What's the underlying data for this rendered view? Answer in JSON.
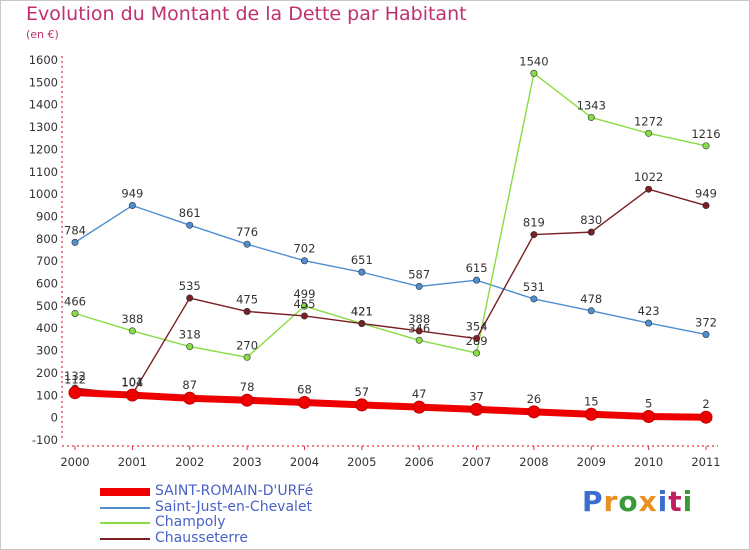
{
  "title": "Evolution du Montant de la Dette par Habitant",
  "subtitle": "(en €)",
  "logo": {
    "text": "Proxiti",
    "colors": [
      "#3a6fd0",
      "#e89020",
      "#3a9a3a",
      "#e89020",
      "#3a6fd0",
      "#c02060",
      "#3a9a3a"
    ]
  },
  "chart_data": {
    "type": "line",
    "x": [
      "2000",
      "2001",
      "2002",
      "2003",
      "2004",
      "2005",
      "2006",
      "2007",
      "2008",
      "2009",
      "2010",
      "2011"
    ],
    "ylim": [
      -100,
      1600
    ],
    "yticks": [
      "-100",
      "0",
      "100",
      "200",
      "300",
      "400",
      "500",
      "600",
      "700",
      "800",
      "900",
      "1000",
      "1100",
      "1200",
      "1300",
      "1400",
      "1500",
      "1600"
    ],
    "grid": false,
    "legend_position": "bottom-left",
    "series": [
      {
        "name": "SAINT-ROMAIN-D'URFé",
        "color": "#ee0000",
        "values": [
          112,
          101,
          87,
          78,
          68,
          57,
          47,
          37,
          26,
          15,
          5,
          2
        ]
      },
      {
        "name": "Saint-Just-en-Chevalet",
        "color": "#4f8fd0",
        "values": [
          784,
          949,
          861,
          776,
          702,
          651,
          587,
          615,
          531,
          478,
          423,
          372
        ]
      },
      {
        "name": "Champoly",
        "color": "#88dd44",
        "values": [
          466,
          388,
          318,
          270,
          499,
          421,
          346,
          289,
          1540,
          1343,
          1272,
          1216
        ]
      },
      {
        "name": "Chausseterre",
        "color": "#7a1f24",
        "values": [
          132,
          104,
          535,
          475,
          455,
          421,
          388,
          354,
          819,
          830,
          1022,
          949
        ]
      }
    ]
  }
}
